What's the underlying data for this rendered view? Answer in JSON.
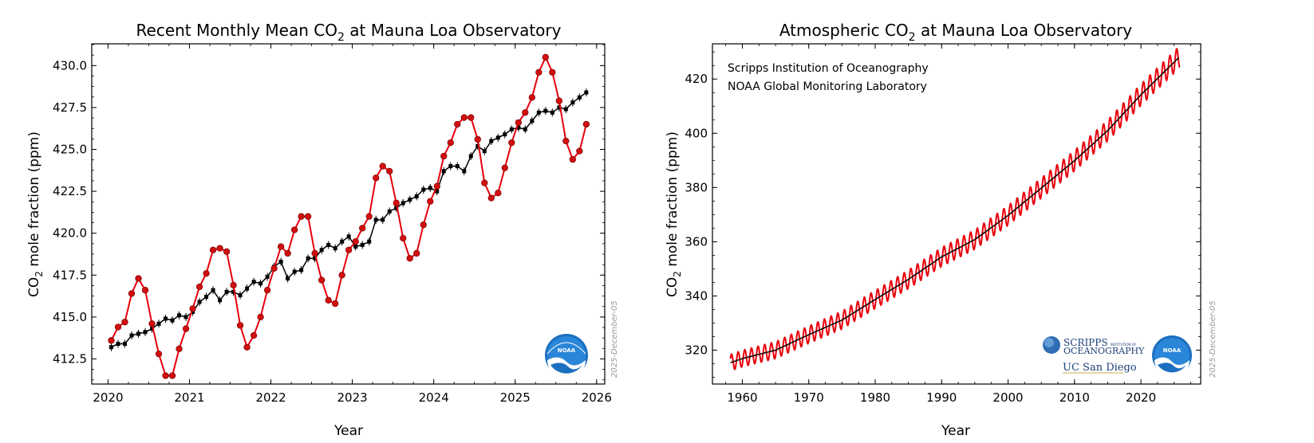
{
  "colors": {
    "monthly_mean": "#e8000b",
    "trend": "#000000",
    "marker_fill": "#d10f0f",
    "noaa_blue": "#1673c7",
    "stamp": "#999999"
  },
  "logos": {
    "noaa": "NOAA",
    "scripps_line1": "SCRIPPS",
    "scripps_small": "INSTITUTION OF",
    "scripps_line2": "OCEANOGRAPHY",
    "ucsd": "UC San Diego"
  },
  "stamp": "2025-December-05",
  "chart_data": [
    {
      "type": "line",
      "title_pre": "Recent Monthly Mean CO",
      "title_sub": "2",
      "title_post": " at Mauna Loa Observatory",
      "xlabel": "Year",
      "ylabel_pre": "CO",
      "ylabel_sub": "2",
      "ylabel_post": " mole fraction (ppm)",
      "xlim": [
        2019.8,
        2026.1
      ],
      "ylim": [
        411.0,
        431.3
      ],
      "xticks": [
        2020,
        2021,
        2022,
        2023,
        2024,
        2025,
        2026
      ],
      "xtick_labels": [
        "2020",
        "2021",
        "2022",
        "2023",
        "2024",
        "2025",
        "2026"
      ],
      "yticks": [
        412.5,
        415.0,
        417.5,
        420.0,
        422.5,
        425.0,
        427.5,
        430.0
      ],
      "ytick_labels": [
        "412.5",
        "415.0",
        "417.5",
        "420.0",
        "422.5",
        "425.0",
        "427.5",
        "430.0"
      ],
      "legend_position": "none",
      "series": [
        {
          "name": "monthly mean",
          "start_year": 2020.04,
          "step": 0.0833333,
          "values": [
            413.6,
            414.4,
            414.7,
            416.4,
            417.3,
            416.6,
            414.6,
            412.8,
            411.5,
            411.5,
            413.1,
            414.3,
            415.5,
            416.8,
            417.6,
            419.0,
            419.1,
            418.9,
            416.9,
            414.5,
            413.2,
            413.9,
            415.0,
            416.6,
            417.9,
            419.2,
            418.8,
            420.2,
            421.0,
            421.0,
            418.8,
            417.2,
            416.0,
            415.8,
            417.5,
            419.0,
            419.5,
            420.3,
            421.0,
            423.3,
            424.0,
            423.7,
            421.8,
            419.7,
            418.5,
            418.8,
            420.5,
            421.9,
            422.8,
            424.6,
            425.4,
            426.5,
            426.9,
            426.9,
            425.6,
            423.0,
            422.1,
            422.4,
            423.9,
            425.4,
            426.6,
            427.2,
            428.1,
            429.6,
            430.5,
            429.6,
            427.9,
            425.5,
            424.4,
            424.9,
            426.5
          ]
        },
        {
          "name": "deseasonalized trend",
          "start_year": 2020.04,
          "step": 0.0833333,
          "values": [
            413.2,
            413.4,
            413.4,
            413.9,
            414.0,
            414.1,
            414.3,
            414.6,
            414.9,
            414.8,
            415.1,
            415.0,
            415.3,
            415.9,
            416.2,
            416.6,
            416.0,
            416.5,
            416.5,
            416.3,
            416.7,
            417.1,
            417.0,
            417.4,
            418.0,
            418.3,
            417.3,
            417.7,
            417.8,
            418.5,
            418.5,
            419.0,
            419.3,
            419.1,
            419.5,
            419.8,
            419.2,
            419.3,
            419.5,
            420.8,
            420.8,
            421.3,
            421.5,
            421.8,
            422.0,
            422.2,
            422.6,
            422.7,
            422.5,
            423.7,
            424.0,
            424.0,
            423.7,
            424.6,
            425.2,
            424.9,
            425.5,
            425.7,
            425.9,
            426.2,
            426.3,
            426.2,
            426.7,
            427.2,
            427.3,
            427.2,
            427.5,
            427.4,
            427.8,
            428.1,
            428.4
          ]
        }
      ]
    },
    {
      "type": "line",
      "title_pre": "Atmospheric CO",
      "title_sub": "2",
      "title_post": " at Mauna Loa Observatory",
      "xlabel": "Year",
      "ylabel_pre": "CO",
      "ylabel_sub": "2",
      "ylabel_post": " mole fraction (ppm)",
      "xlim": [
        1955.5,
        2029.0
      ],
      "ylim": [
        307.5,
        433.0
      ],
      "xticks": [
        1960,
        1970,
        1980,
        1990,
        2000,
        2010,
        2020
      ],
      "xtick_labels": [
        "1960",
        "1970",
        "1980",
        "1990",
        "2000",
        "2010",
        "2020"
      ],
      "yticks": [
        320,
        340,
        360,
        380,
        400,
        420
      ],
      "ytick_labels": [
        "320",
        "340",
        "360",
        "380",
        "400",
        "420"
      ],
      "annotations": [
        "Scripps Institution of Oceanography",
        "NOAA Global Monitoring Laboratory"
      ],
      "legend_position": "none",
      "series_note": "monthly mean (red) oscillates about trend with ~3 ppm annual cycle; trend (black)",
      "trend_anchor_years": [
        1958,
        1960,
        1965,
        1970,
        1975,
        1980,
        1985,
        1990,
        1995,
        2000,
        2005,
        2010,
        2015,
        2020,
        2025.9
      ],
      "trend_anchor_values": [
        315.2,
        316.9,
        320.0,
        325.7,
        331.1,
        338.7,
        346.1,
        354.4,
        360.8,
        369.7,
        379.8,
        389.9,
        401.0,
        414.2,
        428.4
      ],
      "seasonal_amplitude": 3.0
    }
  ]
}
